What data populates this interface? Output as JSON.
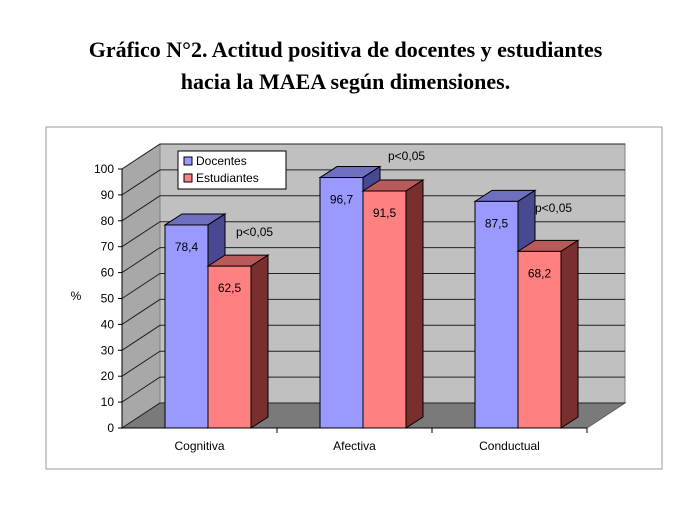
{
  "title": {
    "line1": "Gráfico N°2. Actitud positiva de docentes y estudiantes",
    "line2": "hacia la MAEA según dimensiones."
  },
  "chart_data": {
    "type": "bar",
    "categories": [
      "Cognitiva",
      "Afectiva",
      "Conductual"
    ],
    "series": [
      {
        "name": "Docentes",
        "values": [
          78.4,
          96.7,
          87.5
        ],
        "color": "#9999ff"
      },
      {
        "name": "Estudiantes",
        "values": [
          62.5,
          91.5,
          68.2
        ],
        "color": "#ff8080"
      }
    ],
    "value_labels": [
      [
        "78,4",
        "96,7",
        "87,5"
      ],
      [
        "62,5",
        "91,5",
        "68,2"
      ]
    ],
    "annotations": [
      "p<0,05",
      "p<0,05",
      "p<0,05"
    ],
    "ylabel": "%",
    "ylim": [
      0,
      100
    ],
    "yticks": [
      0,
      10,
      20,
      30,
      40,
      50,
      60,
      70,
      80,
      90,
      100
    ],
    "grid": true,
    "legend_position": "top-left",
    "three_d": true
  }
}
